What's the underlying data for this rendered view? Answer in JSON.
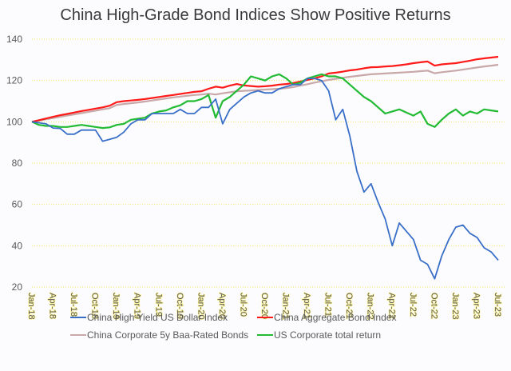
{
  "chart_data": {
    "type": "line",
    "title": "China High-Grade Bond Indices Show Positive Returns",
    "xlabel": "",
    "ylabel": "",
    "ylim": [
      20,
      140
    ],
    "yticks": [
      "20",
      "40",
      "60",
      "80",
      "100",
      "120",
      "140"
    ],
    "grid": true,
    "legend_position": "bottom",
    "x_start": "Jan-18",
    "x_frequency": "monthly",
    "xticks": [
      "Jan-18",
      "Apr-18",
      "Jul-18",
      "Oct-18",
      "Jan-19",
      "Apr-19",
      "Jul-19",
      "Oct-19",
      "Jan-20",
      "Apr-20",
      "Jul-20",
      "Oct-20",
      "Jan-21",
      "Apr-21",
      "Jul-21",
      "Oct-21",
      "Jan-22",
      "Apr-22",
      "Jul-22",
      "Oct-22",
      "Jan-23",
      "Apr-23",
      "Jul-23"
    ],
    "series": [
      {
        "name": "China High Yield US Dollar Index",
        "color": "#3a6fc8",
        "values": [
          100,
          99.5,
          99,
          97,
          96.8,
          94,
          94,
          96,
          96,
          96,
          90.6,
          91.5,
          92.5,
          95,
          99,
          101,
          101,
          104,
          104,
          104,
          104,
          106,
          104,
          104,
          107,
          107,
          111,
          99,
          106,
          109,
          112,
          114,
          115,
          114,
          114,
          116,
          117,
          118,
          118,
          121,
          121,
          120,
          115,
          101,
          106,
          93,
          76,
          66,
          70,
          61,
          53,
          40,
          51,
          47,
          43,
          33,
          31,
          24,
          35,
          43,
          49,
          50,
          46,
          44,
          39,
          37,
          33
        ]
      },
      {
        "name": "China Aggregate Bond Index",
        "color": "#ff1a1a",
        "values": [
          100,
          100.8,
          101.6,
          102.4,
          103.2,
          103.8,
          104.5,
          105.2,
          105.8,
          106.4,
          107,
          107.8,
          109.5,
          110,
          110.3,
          110.6,
          111,
          111.5,
          112,
          112.5,
          113,
          113.5,
          114,
          114.5,
          114.8,
          116,
          117,
          116.5,
          117.5,
          118.3,
          117.6,
          117.3,
          117,
          117.2,
          117.5,
          118,
          118.3,
          118.8,
          119.5,
          120.3,
          121,
          122,
          123.4,
          123.8,
          124.3,
          124.9,
          125.3,
          125.9,
          126.4,
          126.5,
          126.8,
          127,
          127.4,
          127.8,
          128.4,
          128.8,
          129.2,
          127.2,
          127.8,
          128.1,
          128.4,
          129,
          129.6,
          130.3,
          130.7,
          131.1,
          131.5
        ]
      },
      {
        "name": "China Corporate 5y Baa-Rated Bonds",
        "color": "#c8a8a8",
        "values": [
          100,
          100.5,
          101.2,
          101.8,
          102.4,
          103,
          103.6,
          104.2,
          104.8,
          105.4,
          106,
          106.6,
          108.2,
          108.6,
          109,
          109.4,
          109.8,
          110.3,
          110.8,
          111.3,
          111.8,
          112.2,
          112.6,
          113,
          113.2,
          113.6,
          113.2,
          113.8,
          114.3,
          114.8,
          115,
          115.2,
          115.4,
          115.6,
          115.8,
          116,
          116.3,
          116.8,
          117.5,
          118.2,
          119,
          119.6,
          120.3,
          120.8,
          121.3,
          121.8,
          122.2,
          122.6,
          123,
          123.2,
          123.4,
          123.6,
          123.8,
          124,
          124.2,
          124.5,
          124.8,
          123.5,
          124,
          124.4,
          124.8,
          125.3,
          125.8,
          126.3,
          126.8,
          127.2,
          127.6
        ]
      },
      {
        "name": "US Corporate total return",
        "color": "#22bb33",
        "values": [
          100,
          98.5,
          98,
          98,
          97.5,
          97.5,
          98,
          98.5,
          98,
          97.5,
          97,
          97.3,
          98.5,
          99,
          101,
          101.5,
          102,
          104,
          105,
          105.5,
          107,
          108,
          110,
          110,
          111,
          113,
          102,
          110,
          112,
          115,
          118,
          122,
          121,
          120,
          122,
          123,
          121,
          118,
          119,
          121,
          122,
          123,
          122,
          122,
          121,
          118,
          115,
          112,
          110,
          107,
          104,
          105,
          106,
          104.5,
          103,
          105,
          99,
          97.5,
          101,
          104,
          106,
          103,
          105,
          104,
          106,
          105.5,
          105
        ]
      }
    ]
  }
}
